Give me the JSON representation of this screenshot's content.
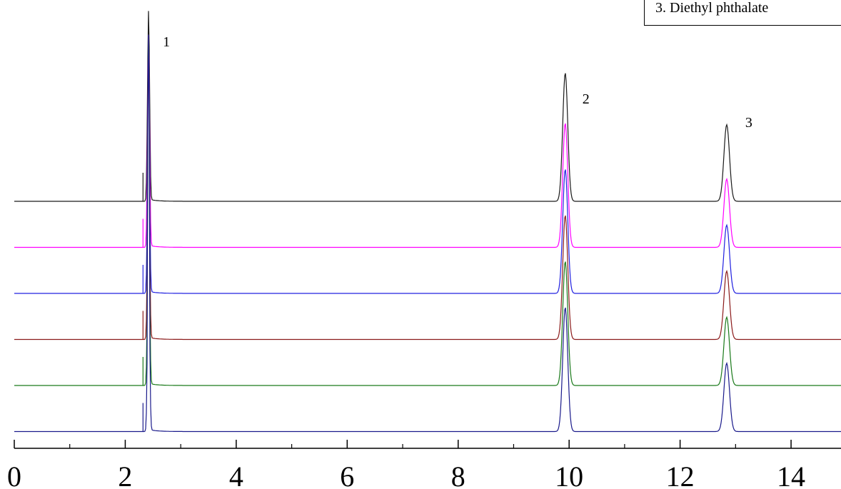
{
  "chart_data": {
    "type": "line",
    "title": "",
    "xlabel": "",
    "ylabel": "",
    "xlim": [
      0,
      14.9
    ],
    "xticks": [
      0,
      2,
      4,
      6,
      8,
      10,
      12,
      14
    ],
    "xtick_labels": [
      "0",
      "2",
      "4",
      "6",
      "8",
      "10",
      "12",
      "14"
    ],
    "minor_xticks": [
      1,
      3,
      5,
      7,
      9,
      11,
      13
    ],
    "grid": false,
    "legend_text": "3. Diethyl phthalate",
    "legend_position": "top-right",
    "peaks": [
      {
        "label": "1",
        "time": 2.42
      },
      {
        "label": "2",
        "time": 9.93
      },
      {
        "label": "3",
        "time": 12.84
      }
    ],
    "series": [
      {
        "color": "#1a1a1a",
        "peak_heights": [
          1.0,
          0.62,
          0.37
        ]
      },
      {
        "color": "#ff00ff",
        "peak_heights": [
          1.0,
          0.6,
          0.33
        ]
      },
      {
        "color": "#2020e0",
        "peak_heights": [
          1.0,
          0.6,
          0.33
        ]
      },
      {
        "color": "#8b1a1a",
        "peak_heights": [
          1.0,
          0.6,
          0.33
        ]
      },
      {
        "color": "#1a7a1a",
        "peak_heights": [
          1.0,
          0.6,
          0.33
        ]
      },
      {
        "color": "#1a1a8b",
        "peak_heights": [
          1.0,
          0.6,
          0.33
        ]
      }
    ]
  }
}
